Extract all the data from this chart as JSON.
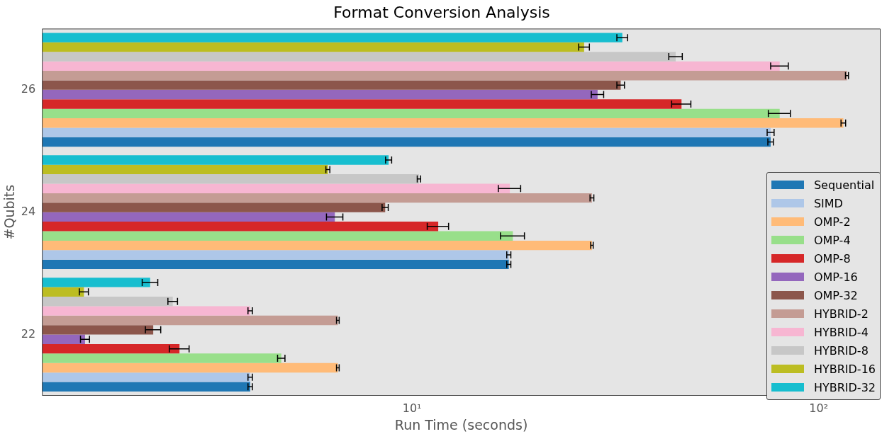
{
  "chart_data": {
    "type": "bar",
    "orientation": "horizontal",
    "title": "Format Conversion Analysis",
    "xlabel": "Run Time (seconds)",
    "ylabel": "#Qubits",
    "categories": [
      "26",
      "24",
      "22"
    ],
    "log": "x",
    "xlim": [
      1.23,
      142
    ],
    "xticks": [
      {
        "value": 10,
        "label": "10¹"
      },
      {
        "value": 100,
        "label": "10²"
      }
    ],
    "grid": false,
    "legend": "right",
    "series": [
      {
        "name": "Sequential",
        "color": "#1f77b4",
        "values": [
          76.2,
          17.3,
          4.0
        ],
        "errors": [
          1.2,
          0.2,
          0.05
        ]
      },
      {
        "name": "SIMD",
        "color": "#aec7e8",
        "values": [
          76.2,
          17.3,
          4.0
        ],
        "errors": [
          1.5,
          0.2,
          0.05
        ]
      },
      {
        "name": "OMP-2",
        "color": "#ffbb78",
        "values": [
          115,
          27.7,
          6.57
        ],
        "errors": [
          1.5,
          0.2,
          0.05
        ]
      },
      {
        "name": "OMP-4",
        "color": "#98df8a",
        "values": [
          80.2,
          17.7,
          4.77
        ],
        "errors": [
          5,
          1.2,
          0.1
        ]
      },
      {
        "name": "OMP-8",
        "color": "#d62728",
        "values": [
          46.0,
          11.6,
          2.68
        ],
        "errors": [
          2.5,
          0.7,
          0.15
        ]
      },
      {
        "name": "OMP-16",
        "color": "#9467bd",
        "values": [
          28.6,
          6.46,
          1.57
        ],
        "errors": [
          1,
          0.3,
          0.04
        ]
      },
      {
        "name": "OMP-32",
        "color": "#8c564b",
        "values": [
          32.6,
          8.59,
          2.31
        ],
        "errors": [
          0.7,
          0.15,
          0.1
        ]
      },
      {
        "name": "HYBRID-2",
        "color": "#c49c94",
        "values": [
          117.4,
          27.7,
          6.57
        ],
        "errors": [
          1,
          0.3,
          0.05
        ]
      },
      {
        "name": "HYBRID-4",
        "color": "#f7b6d2",
        "values": [
          80.2,
          17.4,
          4.0
        ],
        "errors": [
          4,
          1.1,
          0.05
        ]
      },
      {
        "name": "HYBRID-8",
        "color": "#c7c7c7",
        "values": [
          44.5,
          10.4,
          2.58
        ],
        "errors": [
          1.7,
          0.1,
          0.07
        ]
      },
      {
        "name": "HYBRID-16",
        "color": "#bcbd22",
        "values": [
          26.5,
          6.21,
          1.56
        ],
        "errors": [
          0.8,
          0.07,
          0.04
        ]
      },
      {
        "name": "HYBRID-32",
        "color": "#17becf",
        "values": [
          32.9,
          8.76,
          2.27
        ],
        "errors": [
          1,
          0.15,
          0.1
        ]
      }
    ]
  }
}
